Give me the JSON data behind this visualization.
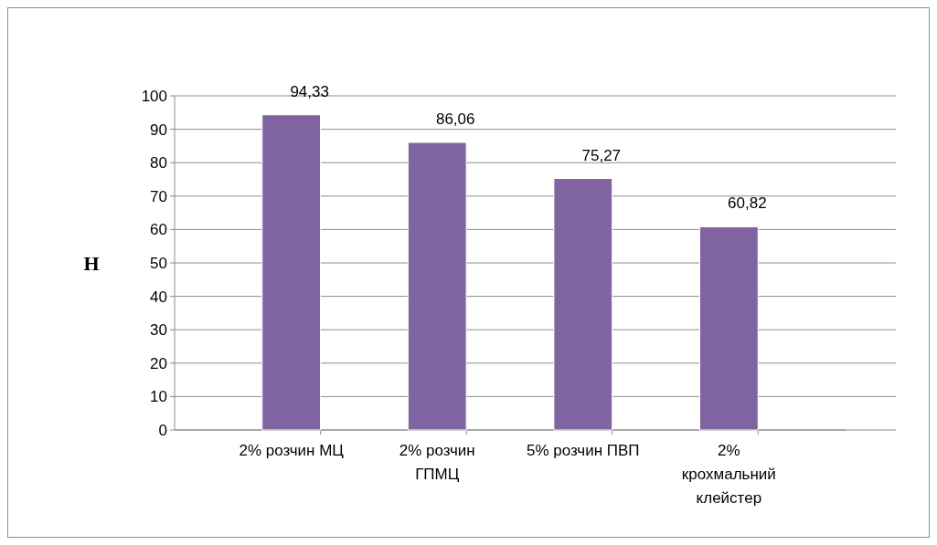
{
  "chart_data": {
    "type": "bar",
    "ylabel": "Н",
    "categories": [
      "2% розчин МЦ",
      "2% розчин ГПМЦ",
      "5% розчин ПВП",
      "2% крохмальний клейстер"
    ],
    "values": [
      94.33,
      86.06,
      75.27,
      60.82
    ],
    "value_labels": [
      "94,33",
      "86,06",
      "75,27",
      "60,82"
    ],
    "color": "#8064a2",
    "ylim": [
      0,
      100
    ],
    "yticks": [
      0,
      10,
      20,
      30,
      40,
      50,
      60,
      70,
      80,
      90,
      100
    ],
    "grid": "y"
  }
}
